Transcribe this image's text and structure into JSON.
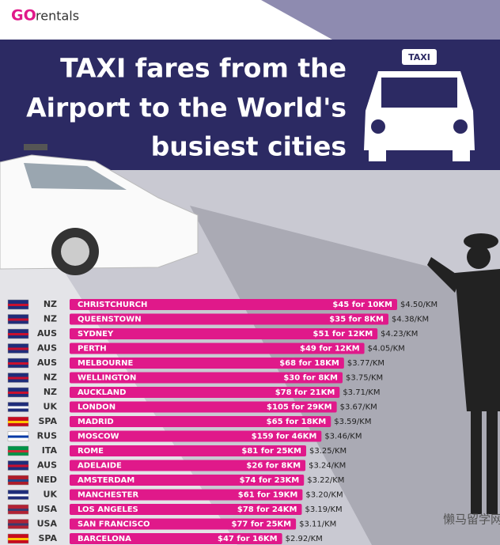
{
  "chart_data": {
    "type": "bar",
    "brand": "rentals",
    "brand_mark": "GO",
    "title_lines": [
      "TAXI fares from the",
      "Airport to the World's",
      "busiest cities"
    ],
    "sign": "TAXI",
    "watermark": "懒马留学网",
    "countries": [
      "NZ",
      "NZ",
      "AUS",
      "AUS",
      "AUS",
      "NZ",
      "NZ",
      "UK",
      "SPA",
      "RUS",
      "ITA",
      "AUS",
      "NED",
      "UK",
      "USA",
      "USA",
      "SPA"
    ],
    "categories": [
      "CHRISTCHURCH",
      "QUEENSTOWN",
      "SYDNEY",
      "PERTH",
      "MELBOURNE",
      "WELLINGTON",
      "AUCKLAND",
      "LONDON",
      "MADRID",
      "MOSCOW",
      "ROME",
      "ADELAIDE",
      "AMSTERDAM",
      "MANCHESTER",
      "LOS ANGELES",
      "SAN FRANCISCO",
      "BARCELONA"
    ],
    "fares": [
      "$45 for 10KM",
      "$35 for 8KM",
      "$51 for 12KM",
      "$49 for 12KM",
      "$68 for 18KM",
      "$30 for 8KM",
      "$78 for 21KM",
      "$105 for 29KM",
      "$65 for 18KM",
      "$159 for 46KM",
      "$81 for 25KM",
      "$26 for 8KM",
      "$74 for 23KM",
      "$61 for 19KM",
      "$78 for 24KM",
      "$77 for 25KM",
      "$47 for 16KM"
    ],
    "values": [
      4.5,
      4.38,
      4.23,
      4.05,
      3.77,
      3.75,
      3.71,
      3.67,
      3.59,
      3.46,
      3.25,
      3.24,
      3.22,
      3.2,
      3.19,
      3.11,
      2.92
    ],
    "value_labels": [
      "$4.50/KM",
      "$4.38/KM",
      "$4.23/KM",
      "$4.05/KM",
      "$3.77/KM",
      "$3.75/KM",
      "$3.71/KM",
      "$3.67/KM",
      "$3.59/KM",
      "$3.46/KM",
      "$3.25/KM",
      "$3.24/KM",
      "$3.22/KM",
      "$3.20/KM",
      "$3.19/KM",
      "$3.11/KM",
      "$2.92/KM"
    ],
    "color": "#e0198a"
  }
}
